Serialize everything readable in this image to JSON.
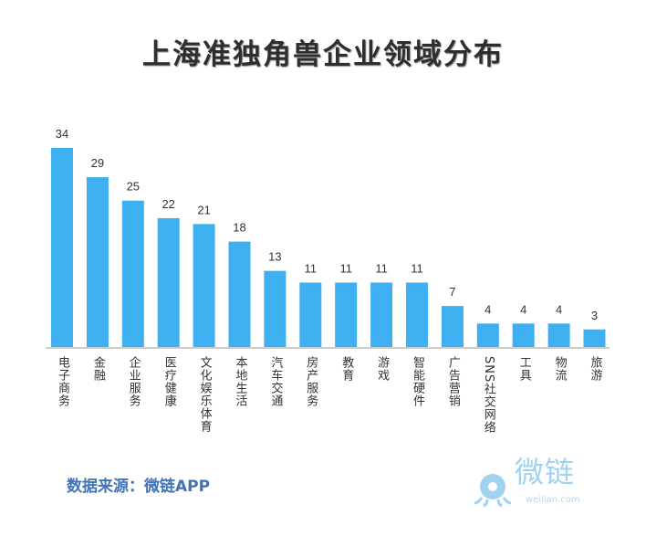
{
  "chart_data": {
    "type": "bar",
    "title": "上海准独角兽企业领域分布",
    "categories": [
      "电子商务",
      "金融",
      "企业服务",
      "医疗健康",
      "文化娱乐体育",
      "本地生活",
      "汽车交通",
      "房产服务",
      "教育",
      "游戏",
      "智能硬件",
      "广告营销",
      "SNS社交网络",
      "工具",
      "物流",
      "旅游"
    ],
    "values": [
      34,
      29,
      25,
      22,
      21,
      18,
      13,
      11,
      11,
      11,
      11,
      7,
      4,
      4,
      4,
      3
    ],
    "xlabel": "",
    "ylabel": "",
    "ylim": [
      0,
      34
    ],
    "grid": false,
    "bar_color": "#3eaff0"
  },
  "source": "数据来源：微链APP",
  "logo": {
    "text": "微链",
    "url": "weilian.com",
    "color": "#9fd3ef"
  }
}
